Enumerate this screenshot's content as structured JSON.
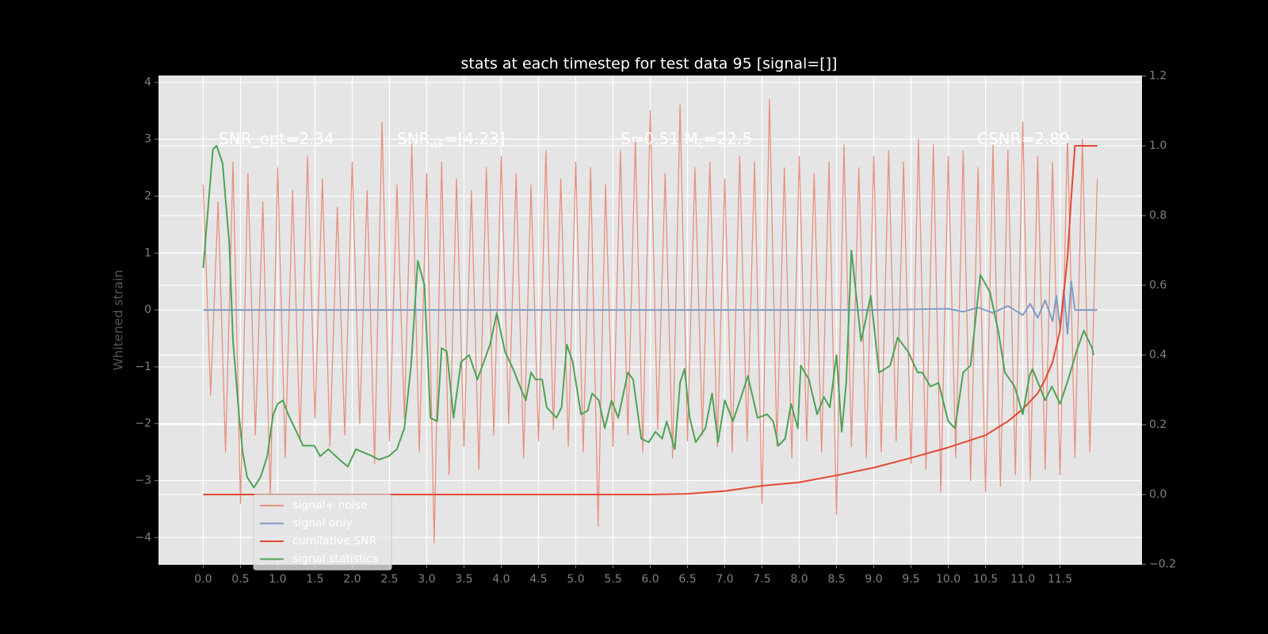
{
  "chart_data": {
    "type": "line",
    "title": "stats at each timestep for test data 95 [signal=[]]",
    "ylabel": "Whitened strain",
    "grid": true,
    "legend": "lower left",
    "xlim": [
      -0.6,
      12.6
    ],
    "ylim": [
      -4.47,
      4.11
    ],
    "y2lim": [
      -0.2,
      1.2
    ],
    "xticks": [
      {
        "value": 0,
        "label": "0.0"
      },
      0.5,
      {
        "value": 1,
        "label": "1.0"
      },
      1.5,
      {
        "value": 2,
        "label": "2.0"
      },
      2.5,
      {
        "value": 3,
        "label": "3.0"
      },
      3.5,
      {
        "value": 4,
        "label": "4.0"
      },
      4.5,
      {
        "value": 5,
        "label": "5.0"
      },
      5.5,
      {
        "value": 6,
        "label": "6.0"
      },
      6.5,
      {
        "value": 7,
        "label": "7.0"
      },
      7.5,
      {
        "value": 8,
        "label": "8.0"
      },
      8.5,
      {
        "value": 9,
        "label": "9.0"
      },
      9.5,
      {
        "value": 10,
        "label": "10.0"
      },
      10.5,
      {
        "value": 11,
        "label": "11.0"
      },
      11.5
    ],
    "yticks": [
      {
        "value": -4,
        "label": "−4"
      },
      {
        "value": -3,
        "label": "−3"
      },
      {
        "value": -2,
        "label": "−2"
      },
      {
        "value": -1,
        "label": "−1"
      },
      0,
      1,
      2,
      3,
      4
    ],
    "y2ticks": [
      {
        "value": -0.2,
        "label": "−0.2"
      },
      {
        "value": 0,
        "label": "0.0"
      },
      0.2,
      0.4,
      0.6,
      0.8,
      {
        "value": 1,
        "label": "1.0"
      },
      1.2
    ],
    "annotations": [
      [
        {
          "text": "SNR_opt=2.34"
        }
      ],
      [
        {
          "text": "SNR"
        },
        {
          "text": "wF",
          "sub": true
        },
        {
          "text": "=[4.23]"
        }
      ],
      [
        {
          "text": "S=0.51  M"
        },
        {
          "text": "c",
          "sub": true
        },
        {
          "text": "=22.5"
        }
      ],
      [
        {
          "text": "CSNR=2.89"
        }
      ]
    ],
    "series": [
      {
        "name": "signal+ noise",
        "color": "#e8907f",
        "x": [
          0,
          0.1,
          0.2,
          0.3,
          0.4,
          0.5,
          0.6,
          0.7,
          0.8,
          0.9,
          1,
          1.1,
          1.2,
          1.3,
          1.4,
          1.5,
          1.6,
          1.7,
          1.8,
          1.9,
          2,
          2.1,
          2.2,
          2.3,
          2.4,
          2.5,
          2.6,
          2.7,
          2.8,
          2.9,
          3,
          3.1,
          3.2,
          3.3,
          3.4,
          3.5,
          3.6,
          3.7,
          3.8,
          3.9,
          4,
          4.1,
          4.2,
          4.3,
          4.4,
          4.5,
          4.6,
          4.7,
          4.8,
          4.9,
          5,
          5.1,
          5.2,
          5.3,
          5.4,
          5.5,
          5.6,
          5.7,
          5.8,
          5.9,
          6,
          6.1,
          6.2,
          6.3,
          6.4,
          6.5,
          6.6,
          6.7,
          6.8,
          6.9,
          7,
          7.1,
          7.2,
          7.3,
          7.4,
          7.5,
          7.6,
          7.7,
          7.8,
          7.9,
          8,
          8.1,
          8.2,
          8.3,
          8.4,
          8.5,
          8.6,
          8.7,
          8.8,
          8.9,
          9,
          9.1,
          9.2,
          9.3,
          9.4,
          9.5,
          9.6,
          9.7,
          9.8,
          9.9,
          10,
          10.1,
          10.2,
          10.3,
          10.4,
          10.5,
          10.6,
          10.7,
          10.8,
          10.9,
          11,
          11.1,
          11.2,
          11.3,
          11.4,
          11.5,
          11.6,
          11.7,
          11.8,
          11.9,
          12
        ],
        "values": [
          2.2,
          -1.5,
          1.9,
          -2.5,
          2.6,
          -3.4,
          2.4,
          -2.2,
          1.9,
          -3.3,
          2.5,
          -2.6,
          2.1,
          -2.3,
          2.7,
          -1.9,
          2.3,
          -2.4,
          1.8,
          -2.2,
          2.6,
          -2.0,
          2.1,
          -2.7,
          3.3,
          -2.3,
          2.2,
          -1.9,
          2.9,
          -2.5,
          2.4,
          -4.1,
          2.6,
          -2.9,
          2.3,
          -2.4,
          2.1,
          -2.8,
          2.5,
          -2.2,
          2.7,
          -2.0,
          2.4,
          -2.6,
          2.2,
          -2.3,
          2.8,
          -2.1,
          2.3,
          -2.4,
          2.6,
          -2.5,
          2.5,
          -3.8,
          2.2,
          -2.4,
          2.8,
          -2.2,
          3.0,
          -2.5,
          3.5,
          -2.1,
          2.4,
          -2.6,
          3.6,
          -2.3,
          2.5,
          -2.2,
          2.6,
          -2.4,
          2.3,
          -2.5,
          2.7,
          -2.3,
          2.6,
          -3.4,
          3.7,
          -2.4,
          2.5,
          -2.6,
          2.7,
          -2.3,
          2.4,
          -2.5,
          2.6,
          -3.6,
          2.9,
          -2.4,
          2.5,
          -2.6,
          2.7,
          -2.5,
          2.8,
          -2.3,
          2.6,
          -2.7,
          3.0,
          -2.8,
          2.9,
          -3.2,
          2.7,
          -2.6,
          2.8,
          -3.0,
          2.5,
          -3.2,
          2.9,
          -3.1,
          2.8,
          -2.9,
          3.3,
          -3.0,
          2.7,
          -2.8,
          2.6,
          -2.9,
          3.1,
          -2.6,
          3.0,
          -2.5,
          2.3
        ]
      },
      {
        "name": "signal only",
        "color": "#7f9cc4",
        "x": [
          0,
          3,
          6,
          9,
          10,
          10.2,
          10.4,
          10.6,
          10.8,
          11,
          11.1,
          11.2,
          11.3,
          11.4,
          11.45,
          11.5,
          11.55,
          11.6,
          11.65,
          11.7,
          12
        ],
        "values": [
          0,
          0,
          0,
          0,
          0.02,
          -0.03,
          0.04,
          -0.05,
          0.07,
          -0.09,
          0.11,
          -0.14,
          0.17,
          -0.2,
          0.25,
          -0.3,
          0.35,
          -0.42,
          0.5,
          0,
          0
        ]
      },
      {
        "name": "cumilative SNR",
        "color": "#e24a33",
        "axis": "y2",
        "x": [
          0,
          6,
          6.5,
          7,
          7.5,
          8,
          8.5,
          9,
          9.5,
          10,
          10.5,
          10.8,
          11,
          11.2,
          11.3,
          11.4,
          11.5,
          11.6,
          11.65,
          11.7,
          12
        ],
        "values": [
          0,
          0,
          0.002,
          0.01,
          0.025,
          0.035,
          0.055,
          0.077,
          0.105,
          0.135,
          0.17,
          0.21,
          0.245,
          0.29,
          0.33,
          0.38,
          0.47,
          0.68,
          0.85,
          1.0,
          1.0
        ]
      },
      {
        "name": "signal statistics",
        "color": "#4ea256",
        "axis": "y2",
        "x": [
          0,
          0.13,
          0.18,
          0.26,
          0.35,
          0.4,
          0.48,
          0.53,
          0.59,
          0.68,
          0.77,
          0.86,
          0.94,
          1.0,
          1.07,
          1.14,
          1.23,
          1.34,
          1.49,
          1.57,
          1.68,
          1.83,
          1.94,
          2.05,
          2.27,
          2.36,
          2.49,
          2.6,
          2.7,
          2.79,
          2.88,
          2.97,
          3.05,
          3.14,
          3.2,
          3.27,
          3.36,
          3.46,
          3.57,
          3.68,
          3.85,
          3.94,
          4.05,
          4.16,
          4.27,
          4.33,
          4.4,
          4.46,
          4.55,
          4.61,
          4.74,
          4.81,
          4.88,
          4.96,
          5.07,
          5.16,
          5.22,
          5.31,
          5.39,
          5.48,
          5.57,
          5.7,
          5.77,
          5.88,
          5.98,
          6.07,
          6.16,
          6.22,
          6.33,
          6.4,
          6.46,
          6.53,
          6.61,
          6.74,
          6.83,
          6.91,
          7.0,
          7.11,
          7.22,
          7.31,
          7.44,
          7.57,
          7.65,
          7.72,
          7.81,
          7.89,
          7.98,
          8.02,
          8.13,
          8.24,
          8.33,
          8.41,
          8.5,
          8.57,
          8.63,
          8.7,
          8.83,
          8.96,
          9.07,
          9.15,
          9.22,
          9.32,
          9.46,
          9.59,
          9.65,
          9.76,
          9.87,
          10.0,
          10.09,
          10.2,
          10.3,
          10.37,
          10.43,
          10.56,
          10.67,
          10.76,
          10.89,
          11.0,
          11.09,
          11.13,
          11.3,
          11.39,
          11.5,
          11.61,
          11.72,
          11.82,
          11.93,
          11.95
        ],
        "values": [
          0.65,
          0.99,
          1.0,
          0.95,
          0.72,
          0.44,
          0.23,
          0.12,
          0.05,
          0.02,
          0.05,
          0.11,
          0.23,
          0.26,
          0.27,
          0.23,
          0.19,
          0.14,
          0.14,
          0.11,
          0.13,
          0.1,
          0.08,
          0.13,
          0.11,
          0.1,
          0.11,
          0.13,
          0.19,
          0.37,
          0.67,
          0.6,
          0.22,
          0.21,
          0.42,
          0.41,
          0.22,
          0.38,
          0.4,
          0.33,
          0.43,
          0.52,
          0.41,
          0.36,
          0.3,
          0.27,
          0.35,
          0.33,
          0.33,
          0.25,
          0.22,
          0.25,
          0.43,
          0.38,
          0.23,
          0.24,
          0.29,
          0.27,
          0.19,
          0.27,
          0.22,
          0.35,
          0.33,
          0.16,
          0.15,
          0.18,
          0.16,
          0.21,
          0.13,
          0.32,
          0.36,
          0.22,
          0.15,
          0.19,
          0.29,
          0.15,
          0.27,
          0.21,
          0.28,
          0.34,
          0.22,
          0.23,
          0.21,
          0.14,
          0.16,
          0.26,
          0.19,
          0.37,
          0.33,
          0.23,
          0.28,
          0.25,
          0.4,
          0.18,
          0.32,
          0.7,
          0.44,
          0.57,
          0.35,
          0.36,
          0.37,
          0.45,
          0.41,
          0.35,
          0.35,
          0.31,
          0.32,
          0.21,
          0.19,
          0.35,
          0.37,
          0.51,
          0.63,
          0.58,
          0.47,
          0.35,
          0.31,
          0.23,
          0.34,
          0.36,
          0.27,
          0.31,
          0.26,
          0.33,
          0.41,
          0.47,
          0.42,
          0.4
        ]
      }
    ]
  }
}
